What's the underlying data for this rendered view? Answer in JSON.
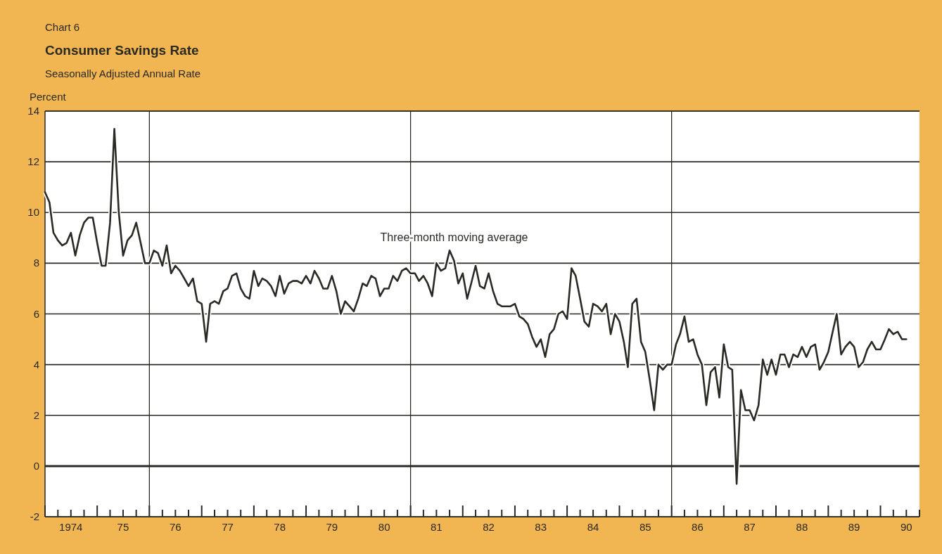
{
  "chart_data": {
    "type": "line",
    "title": "Consumer Savings Rate",
    "subtitle": "Seasonally Adjusted Annual Rate",
    "ylabel": "Percent",
    "annotations": [
      "Chart 6"
    ],
    "x": [
      "1974-01",
      "1974-02",
      "1974-03",
      "1974-04",
      "1974-05",
      "1974-06",
      "1974-07",
      "1974-08",
      "1974-09",
      "1974-10",
      "1974-11",
      "1974-12",
      "1975-01",
      "1975-02",
      "1975-03",
      "1975-04",
      "1975-05",
      "1975-06",
      "1975-07",
      "1975-08",
      "1975-09",
      "1975-10",
      "1975-11",
      "1975-12",
      "1976-01",
      "1976-02",
      "1976-03",
      "1976-04",
      "1976-05",
      "1976-06",
      "1976-07",
      "1976-08",
      "1976-09",
      "1976-10",
      "1976-11",
      "1976-12",
      "1977-01",
      "1977-02",
      "1977-03",
      "1977-04",
      "1977-05",
      "1977-06",
      "1977-07",
      "1977-08",
      "1977-09",
      "1977-10",
      "1977-11",
      "1977-12",
      "1978-01",
      "1978-02",
      "1978-03",
      "1978-04",
      "1978-05",
      "1978-06",
      "1978-07",
      "1978-08",
      "1978-09",
      "1978-10",
      "1978-11",
      "1978-12",
      "1979-01",
      "1979-02",
      "1979-03",
      "1979-04",
      "1979-05",
      "1979-06",
      "1979-07",
      "1979-08",
      "1979-09",
      "1979-10",
      "1979-11",
      "1979-12",
      "1980-01",
      "1980-02",
      "1980-03",
      "1980-04",
      "1980-05",
      "1980-06",
      "1980-07",
      "1980-08",
      "1980-09",
      "1980-10",
      "1980-11",
      "1980-12",
      "1981-01",
      "1981-02",
      "1981-03",
      "1981-04",
      "1981-05",
      "1981-06",
      "1981-07",
      "1981-08",
      "1981-09",
      "1981-10",
      "1981-11",
      "1981-12",
      "1982-01",
      "1982-02",
      "1982-03",
      "1982-04",
      "1982-05",
      "1982-06",
      "1982-07",
      "1982-08",
      "1982-09",
      "1982-10",
      "1982-11",
      "1982-12",
      "1983-01",
      "1983-02",
      "1983-03",
      "1983-04",
      "1983-05",
      "1983-06",
      "1983-07",
      "1983-08",
      "1983-09",
      "1983-10",
      "1983-11",
      "1983-12",
      "1984-01",
      "1984-02",
      "1984-03",
      "1984-04",
      "1984-05",
      "1984-06",
      "1984-07",
      "1984-08",
      "1984-09",
      "1984-10",
      "1984-11",
      "1984-12",
      "1985-01",
      "1985-02",
      "1985-03",
      "1985-04",
      "1985-05",
      "1985-06",
      "1985-07",
      "1985-08",
      "1985-09",
      "1985-10",
      "1985-11",
      "1985-12",
      "1986-01",
      "1986-02",
      "1986-03",
      "1986-04",
      "1986-05",
      "1986-06",
      "1986-07",
      "1986-08",
      "1986-09",
      "1986-10",
      "1986-11",
      "1986-12",
      "1987-01",
      "1987-02",
      "1987-03",
      "1987-04",
      "1987-05",
      "1987-06",
      "1987-07",
      "1987-08",
      "1987-09",
      "1987-10",
      "1987-11",
      "1987-12",
      "1988-01",
      "1988-02",
      "1988-03",
      "1988-04",
      "1988-05",
      "1988-06",
      "1988-07",
      "1988-08",
      "1988-09",
      "1988-10",
      "1988-11",
      "1988-12",
      "1989-01",
      "1989-02",
      "1989-03",
      "1989-04",
      "1989-05",
      "1989-06",
      "1989-07",
      "1989-08",
      "1989-09",
      "1989-10",
      "1989-11",
      "1989-12",
      "1990-01",
      "1990-02",
      "1990-03",
      "1990-04",
      "1990-05",
      "1990-06",
      "1990-07"
    ],
    "series": [
      {
        "name": "Three-month moving average",
        "color": "#2a2a24",
        "values": [
          10.8,
          10.4,
          9.2,
          8.9,
          8.7,
          8.8,
          9.2,
          8.3,
          9.1,
          9.6,
          9.8,
          9.8,
          8.8,
          7.9,
          7.9,
          9.6,
          13.3,
          10.0,
          8.3,
          8.9,
          9.1,
          9.6,
          8.8,
          8.0,
          8.0,
          8.5,
          8.4,
          7.9,
          8.7,
          7.6,
          7.9,
          7.7,
          7.4,
          7.1,
          7.4,
          6.5,
          6.4,
          4.9,
          6.4,
          6.5,
          6.4,
          6.9,
          7.0,
          7.5,
          7.6,
          7.0,
          6.7,
          6.6,
          7.7,
          7.1,
          7.4,
          7.3,
          7.1,
          6.7,
          7.5,
          6.8,
          7.2,
          7.3,
          7.3,
          7.2,
          7.5,
          7.2,
          7.7,
          7.4,
          7.0,
          7.0,
          7.5,
          6.9,
          6.0,
          6.5,
          6.3,
          6.1,
          6.6,
          7.2,
          7.1,
          7.5,
          7.4,
          6.7,
          7.0,
          7.0,
          7.5,
          7.3,
          7.7,
          7.8,
          7.6,
          7.6,
          7.3,
          7.5,
          7.2,
          6.7,
          8.0,
          7.7,
          7.8,
          8.5,
          8.1,
          7.2,
          7.6,
          6.6,
          7.2,
          7.9,
          7.1,
          7.0,
          7.6,
          6.9,
          6.4,
          6.3,
          6.3,
          6.3,
          6.4,
          5.9,
          5.8,
          5.6,
          5.1,
          4.7,
          5.0,
          4.3,
          5.2,
          5.4,
          6.0,
          6.1,
          5.8,
          7.8,
          7.5,
          6.6,
          5.7,
          5.5,
          6.4,
          6.3,
          6.1,
          6.4,
          5.2,
          6.0,
          5.7,
          4.9,
          3.9,
          6.4,
          6.6,
          4.9,
          4.5,
          3.4,
          2.2,
          4.0,
          3.8,
          4.0,
          4.0,
          4.8,
          5.2,
          5.9,
          4.9,
          5.0,
          4.4,
          4.0,
          2.4,
          3.7,
          3.9,
          2.7,
          4.8,
          3.9,
          3.8,
          -0.7,
          3.0,
          2.2,
          2.2,
          1.8,
          2.4,
          4.2,
          3.6,
          4.2,
          3.6,
          4.4,
          4.4,
          3.9,
          4.4,
          4.3,
          4.7,
          4.3,
          4.7,
          4.8,
          3.8,
          4.1,
          4.5,
          5.3,
          6.0,
          4.4,
          4.7,
          4.9,
          4.7,
          3.9,
          4.1,
          4.6,
          4.9,
          4.6,
          4.6,
          5.0,
          5.4,
          5.2,
          5.3,
          5.0,
          5.0
        ]
      }
    ],
    "xlim": [
      "1974-01",
      "1990-10"
    ],
    "xticks": [
      {
        "value": "1974-01",
        "label": null
      },
      {
        "value": "1974-04",
        "label": null
      },
      {
        "value": "1974-07",
        "label": "1974"
      },
      {
        "value": "1974-10",
        "label": null
      },
      {
        "value": "1975-01",
        "label": null
      },
      {
        "value": "1975-04",
        "label": null
      },
      {
        "value": "1975-07",
        "label": "75"
      },
      {
        "value": "1975-10",
        "label": null
      },
      {
        "value": "1976-01",
        "label": null
      },
      {
        "value": "1976-04",
        "label": null
      },
      {
        "value": "1976-07",
        "label": "76"
      },
      {
        "value": "1976-10",
        "label": null
      },
      {
        "value": "1977-01",
        "label": null
      },
      {
        "value": "1977-04",
        "label": null
      },
      {
        "value": "1977-07",
        "label": "77"
      },
      {
        "value": "1977-10",
        "label": null
      },
      {
        "value": "1978-01",
        "label": null
      },
      {
        "value": "1978-04",
        "label": null
      },
      {
        "value": "1978-07",
        "label": "78"
      },
      {
        "value": "1978-10",
        "label": null
      },
      {
        "value": "1979-01",
        "label": null
      },
      {
        "value": "1979-04",
        "label": null
      },
      {
        "value": "1979-07",
        "label": "79"
      },
      {
        "value": "1979-10",
        "label": null
      },
      {
        "value": "1980-01",
        "label": null
      },
      {
        "value": "1980-04",
        "label": null
      },
      {
        "value": "1980-07",
        "label": "80"
      },
      {
        "value": "1980-10",
        "label": null
      },
      {
        "value": "1981-01",
        "label": null
      },
      {
        "value": "1981-04",
        "label": null
      },
      {
        "value": "1981-07",
        "label": "81"
      },
      {
        "value": "1981-10",
        "label": null
      },
      {
        "value": "1982-01",
        "label": null
      },
      {
        "value": "1982-04",
        "label": null
      },
      {
        "value": "1982-07",
        "label": "82"
      },
      {
        "value": "1982-10",
        "label": null
      },
      {
        "value": "1983-01",
        "label": null
      },
      {
        "value": "1983-04",
        "label": null
      },
      {
        "value": "1983-07",
        "label": "83"
      },
      {
        "value": "1983-10",
        "label": null
      },
      {
        "value": "1984-01",
        "label": null
      },
      {
        "value": "1984-04",
        "label": null
      },
      {
        "value": "1984-07",
        "label": "84"
      },
      {
        "value": "1984-10",
        "label": null
      },
      {
        "value": "1985-01",
        "label": null
      },
      {
        "value": "1985-04",
        "label": null
      },
      {
        "value": "1985-07",
        "label": "85"
      },
      {
        "value": "1985-10",
        "label": null
      },
      {
        "value": "1986-01",
        "label": null
      },
      {
        "value": "1986-04",
        "label": null
      },
      {
        "value": "1986-07",
        "label": "86"
      },
      {
        "value": "1986-10",
        "label": null
      },
      {
        "value": "1987-01",
        "label": null
      },
      {
        "value": "1987-04",
        "label": null
      },
      {
        "value": "1987-07",
        "label": "87"
      },
      {
        "value": "1987-10",
        "label": null
      },
      {
        "value": "1988-01",
        "label": null
      },
      {
        "value": "1988-04",
        "label": null
      },
      {
        "value": "1988-07",
        "label": "88"
      },
      {
        "value": "1988-10",
        "label": null
      },
      {
        "value": "1989-01",
        "label": null
      },
      {
        "value": "1989-04",
        "label": null
      },
      {
        "value": "1989-07",
        "label": "89"
      },
      {
        "value": "1989-10",
        "label": null
      },
      {
        "value": "1990-01",
        "label": null
      },
      {
        "value": "1990-04",
        "label": null
      },
      {
        "value": "1990-07",
        "label": "90"
      },
      {
        "value": "1990-10",
        "label": null
      }
    ],
    "ylim": [
      -2,
      14
    ],
    "yticks": [
      -2,
      0,
      2,
      4,
      6,
      8,
      10,
      12,
      14
    ],
    "grid": "y",
    "ref_lines": [
      {
        "axis": "x",
        "value": "1976-01",
        "color": "#2a2a24"
      },
      {
        "axis": "x",
        "value": "1981-01",
        "color": "#2a2a24"
      },
      {
        "axis": "x",
        "value": "1986-01",
        "color": "#2a2a24"
      }
    ],
    "legend": false,
    "marker": "none",
    "line_style": "solid"
  }
}
